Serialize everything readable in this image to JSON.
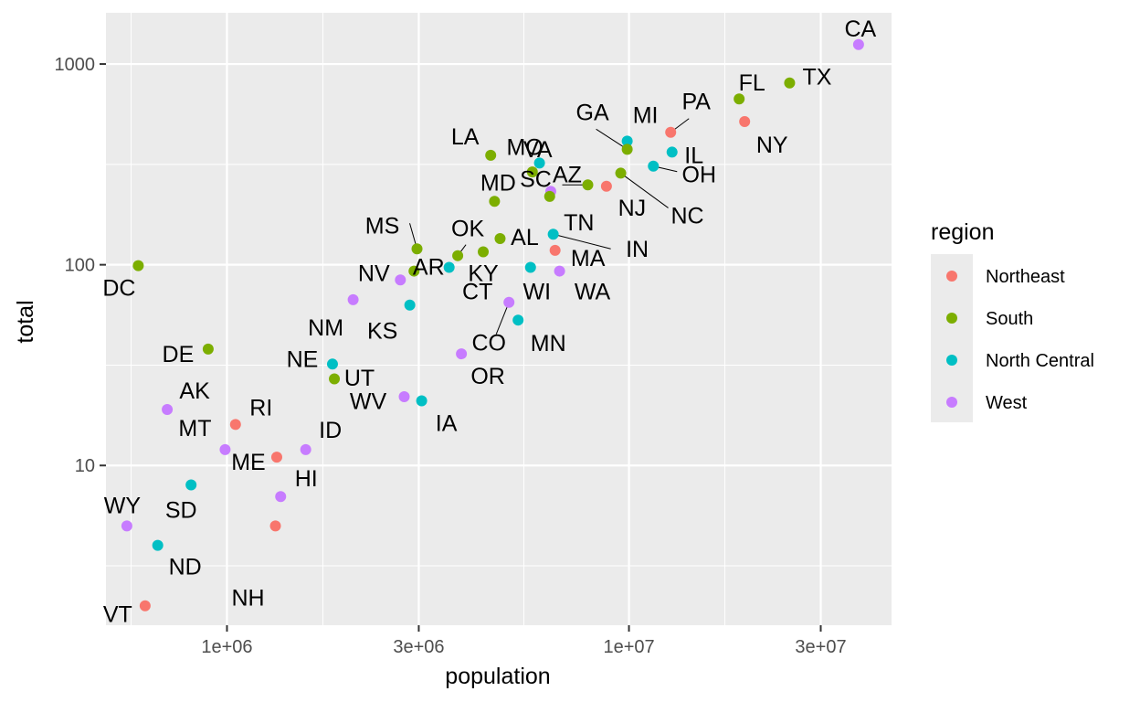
{
  "chart_data": {
    "type": "scatter",
    "xlabel": "population",
    "ylabel": "total",
    "x_scale": "log10",
    "y_scale": "log10",
    "xlim": [
      500000,
      45000000
    ],
    "ylim": [
      1.6,
      1800
    ],
    "x_ticks": [
      {
        "value": 1000000,
        "label": "1e+06"
      },
      {
        "value": 3000000,
        "label": "3e+06"
      },
      {
        "value": 10000000,
        "label": "1e+07"
      },
      {
        "value": 30000000,
        "label": "3e+07"
      }
    ],
    "y_ticks": [
      {
        "value": 10,
        "label": "10"
      },
      {
        "value": 100,
        "label": "100"
      },
      {
        "value": 1000,
        "label": "1000"
      }
    ],
    "grid": true,
    "legend": {
      "title": "region",
      "placement": "right",
      "entries": [
        {
          "name": "Northeast",
          "color": "#F8766D"
        },
        {
          "name": "South",
          "color": "#7CAE00"
        },
        {
          "name": "North Central",
          "color": "#00BFC4"
        },
        {
          "name": "West",
          "color": "#C77CFF"
        }
      ]
    },
    "points": [
      {
        "abb": "CA",
        "region": "West",
        "population": 37250000,
        "total": 1250
      },
      {
        "abb": "TX",
        "region": "South",
        "population": 25100000,
        "total": 805
      },
      {
        "abb": "FL",
        "region": "South",
        "population": 18800000,
        "total": 670
      },
      {
        "abb": "NY",
        "region": "Northeast",
        "population": 19400000,
        "total": 517
      },
      {
        "abb": "PA",
        "region": "Northeast",
        "population": 12700000,
        "total": 457
      },
      {
        "abb": "MI",
        "region": "North Central",
        "population": 9900000,
        "total": 413
      },
      {
        "abb": "GA",
        "region": "South",
        "population": 9900000,
        "total": 376
      },
      {
        "abb": "IL",
        "region": "North Central",
        "population": 12800000,
        "total": 364
      },
      {
        "abb": "LA",
        "region": "South",
        "population": 4530000,
        "total": 351
      },
      {
        "abb": "MO",
        "region": "North Central",
        "population": 5990000,
        "total": 321
      },
      {
        "abb": "OH",
        "region": "North Central",
        "population": 11500000,
        "total": 310
      },
      {
        "abb": "VA",
        "region": "South",
        "population": 5750000,
        "total": 290
      },
      {
        "abb": "NC",
        "region": "South",
        "population": 9540000,
        "total": 286
      },
      {
        "abb": "NJ",
        "region": "Northeast",
        "population": 8790000,
        "total": 246
      },
      {
        "abb": "AZ",
        "region": "West",
        "population": 6390000,
        "total": 232
      },
      {
        "abb": "TN",
        "region": "South",
        "population": 6350000,
        "total": 219
      },
      {
        "abb": "MD",
        "region": "South",
        "population": 4630000,
        "total": 207
      },
      {
        "abb": "SC",
        "region": "South",
        "population": 7900000,
        "total": 250
      },
      {
        "abb": "IN",
        "region": "North Central",
        "population": 6480000,
        "total": 142
      },
      {
        "abb": "AL",
        "region": "South",
        "population": 4780000,
        "total": 135
      },
      {
        "abb": "MS",
        "region": "South",
        "population": 2970000,
        "total": 120
      },
      {
        "abb": "MA",
        "region": "Northeast",
        "population": 6550000,
        "total": 118
      },
      {
        "abb": "KY",
        "region": "South",
        "population": 4340000,
        "total": 116
      },
      {
        "abb": "OK",
        "region": "South",
        "population": 3750000,
        "total": 111
      },
      {
        "abb": "DC",
        "region": "South",
        "population": 601700,
        "total": 99
      },
      {
        "abb": "AR",
        "region": "South",
        "population": 2920000,
        "total": 93
      },
      {
        "abb": "WI",
        "region": "North Central",
        "population": 5690000,
        "total": 97
      },
      {
        "abb": "WA",
        "region": "West",
        "population": 6720000,
        "total": 93
      },
      {
        "abb": "NV",
        "region": "West",
        "population": 2700000,
        "total": 84
      },
      {
        "abb": "CO",
        "region": "West",
        "population": 5030000,
        "total": 65
      },
      {
        "abb": "NM",
        "region": "West",
        "population": 2060000,
        "total": 67
      },
      {
        "abb": "CT",
        "region": "North Central",
        "population": 3570000,
        "total": 97
      },
      {
        "abb": "KS",
        "region": "North Central",
        "population": 2850000,
        "total": 63
      },
      {
        "abb": "MN",
        "region": "North Central",
        "population": 5300000,
        "total": 53
      },
      {
        "abb": "DE",
        "region": "South",
        "population": 897900,
        "total": 38
      },
      {
        "abb": "NE",
        "region": "North Central",
        "population": 1830000,
        "total": 32
      },
      {
        "abb": "WV",
        "region": "South",
        "population": 1850000,
        "total": 27
      },
      {
        "abb": "OR",
        "region": "West",
        "population": 3830000,
        "total": 36
      },
      {
        "abb": "UT",
        "region": "West",
        "population": 2760000,
        "total": 22
      },
      {
        "abb": "IA",
        "region": "North Central",
        "population": 3050000,
        "total": 21
      },
      {
        "abb": "AK",
        "region": "West",
        "population": 710200,
        "total": 19
      },
      {
        "abb": "RI",
        "region": "Northeast",
        "population": 1050000,
        "total": 16
      },
      {
        "abb": "MT",
        "region": "West",
        "population": 989400,
        "total": 12
      },
      {
        "abb": "ID",
        "region": "West",
        "population": 1570000,
        "total": 12
      },
      {
        "abb": "ME",
        "region": "Northeast",
        "population": 1330000,
        "total": 11
      },
      {
        "abb": "SD",
        "region": "North Central",
        "population": 814200,
        "total": 8
      },
      {
        "abb": "HI",
        "region": "West",
        "population": 1360000,
        "total": 7
      },
      {
        "abb": "NH",
        "region": "Northeast",
        "population": 1320000,
        "total": 5
      },
      {
        "abb": "WY",
        "region": "West",
        "population": 563600,
        "total": 5
      },
      {
        "abb": "ND",
        "region": "North Central",
        "population": 672600,
        "total": 4
      },
      {
        "abb": "VT",
        "region": "Northeast",
        "population": 625700,
        "total": 2
      }
    ]
  }
}
